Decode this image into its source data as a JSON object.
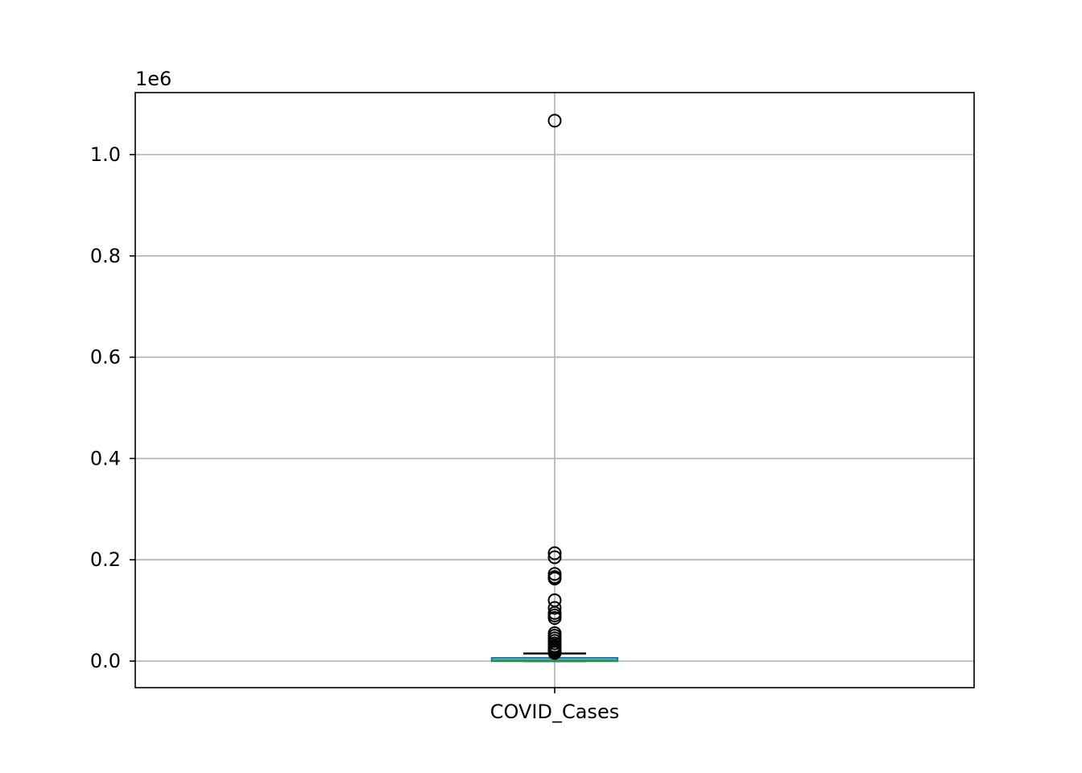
{
  "chart_data": {
    "type": "box",
    "title": "",
    "xlabel": "",
    "ylabel": "",
    "scale_label": "1e6",
    "categories": [
      "COVID_Cases"
    ],
    "ylim": [
      -0.052,
      1.12
    ],
    "yticks": [
      0.0,
      0.2,
      0.4,
      0.6,
      0.8,
      1.0
    ],
    "ytick_labels": [
      "0.0",
      "0.2",
      "0.4",
      "0.6",
      "0.8",
      "1.0"
    ],
    "grid": true,
    "box": {
      "whisker_low": 0.0,
      "q1": 0.0,
      "median": 0.0015,
      "q3": 0.006,
      "whisker_high": 0.015
    },
    "outliers": [
      1.067,
      0.213,
      0.205,
      0.172,
      0.166,
      0.163,
      0.12,
      0.105,
      0.095,
      0.09,
      0.085,
      0.055,
      0.05,
      0.045,
      0.04,
      0.035,
      0.03,
      0.027,
      0.025,
      0.022,
      0.02,
      0.018,
      0.016
    ],
    "colors": {
      "box": "#1f77b4",
      "median": "#2ca02c",
      "grid": "#b0b0b0",
      "axes": "#000000"
    }
  }
}
